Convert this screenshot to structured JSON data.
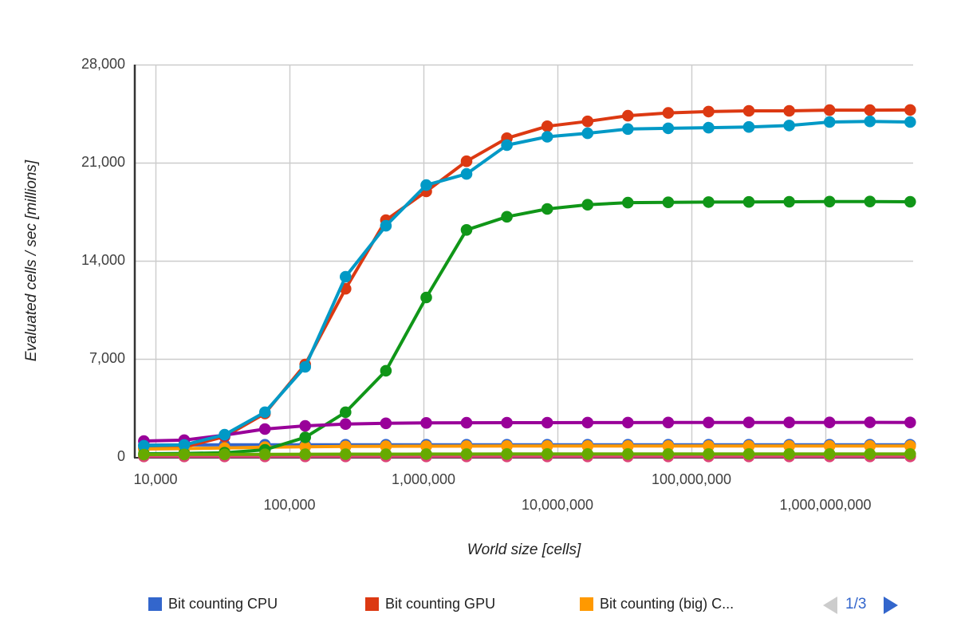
{
  "chart": {
    "y_axis": {
      "title": "Evaluated cells / sec [millions]",
      "ticks": [
        {
          "label": "0",
          "value": 0
        },
        {
          "label": "7,000",
          "value": 7000
        },
        {
          "label": "14,000",
          "value": 14000
        },
        {
          "label": "21,000",
          "value": 21000
        },
        {
          "label": "28,000",
          "value": 28000
        }
      ],
      "range": [
        0,
        28000
      ]
    },
    "x_axis": {
      "title": "World size [cells]",
      "scale": "log",
      "ticks": [
        {
          "label": "10,000",
          "value": 10000,
          "row": 1
        },
        {
          "label": "100,000",
          "value": 100000,
          "row": 2
        },
        {
          "label": "1,000,000",
          "value": 1000000,
          "row": 1
        },
        {
          "label": "10,000,000",
          "value": 10000000,
          "row": 2
        },
        {
          "label": "100,000,000",
          "value": 100000000,
          "row": 1
        },
        {
          "label": "1,000,000,000",
          "value": 1000000000,
          "row": 2
        }
      ]
    },
    "legend": {
      "items": [
        {
          "label": "Bit counting CPU",
          "color": "#3366cc"
        },
        {
          "label": "Bit counting GPU",
          "color": "#dc3912"
        },
        {
          "label": "Bit counting (big) C...",
          "color": "#ff9900"
        }
      ],
      "page_label": "1/3",
      "prev_arrow_color": "#cccccc",
      "next_arrow_color": "#3366cc",
      "page_text_color": "#3366cc"
    },
    "colors": {
      "background": "#ffffff",
      "gridline": "#cccccc",
      "axis_line": "#333333",
      "tick_text": "#404040",
      "title_text": "#222222"
    }
  },
  "chart_data": {
    "type": "line",
    "title": "",
    "xlabel": "World size [cells]",
    "ylabel": "Evaluated cells / sec [millions]",
    "x_scale": "log",
    "ylim": [
      0,
      28000
    ],
    "grid": true,
    "legend_position": "bottom",
    "legend_page": "1/3",
    "x": [
      8192,
      16384,
      32768,
      65536,
      131072,
      262144,
      524288,
      1048576,
      2097152,
      4194304,
      8388608,
      16777216,
      33554432,
      67108864,
      134217728,
      268435456,
      536870912,
      1073741824,
      2147483648,
      4294967296
    ],
    "series": [
      {
        "name": "Bit counting CPU",
        "color": "#3366cc",
        "values": [
          850,
          860,
          865,
          870,
          870,
          870,
          870,
          870,
          870,
          870,
          870,
          870,
          870,
          870,
          870,
          870,
          870,
          870,
          870,
          870
        ]
      },
      {
        "name": "Bit counting GPU",
        "color": "#dc3912",
        "values": [
          620,
          700,
          1450,
          3100,
          6600,
          12000,
          16900,
          18950,
          21100,
          22750,
          23600,
          23950,
          24350,
          24550,
          24650,
          24700,
          24700,
          24750,
          24750,
          24760
        ]
      },
      {
        "name": "Bit counting (big) C...",
        "color": "#ff9900",
        "values": [
          570,
          600,
          640,
          700,
          730,
          750,
          760,
          770,
          775,
          780,
          780,
          780,
          780,
          780,
          780,
          785,
          785,
          785,
          785,
          785
        ]
      },
      {
        "name": "",
        "color": "#109618",
        "values": [
          230,
          250,
          300,
          510,
          1400,
          3190,
          6150,
          11380,
          16200,
          17140,
          17700,
          18000,
          18150,
          18170,
          18190,
          18200,
          18210,
          18220,
          18230,
          18210
        ]
      },
      {
        "name": "",
        "color": "#990099",
        "values": [
          1140,
          1200,
          1560,
          1990,
          2220,
          2350,
          2400,
          2430,
          2440,
          2450,
          2450,
          2455,
          2455,
          2460,
          2460,
          2465,
          2465,
          2465,
          2470,
          2465
        ]
      },
      {
        "name": "",
        "color": "#0099c6",
        "values": [
          800,
          860,
          1590,
          3190,
          6430,
          12860,
          16500,
          19400,
          20200,
          22250,
          22850,
          23100,
          23400,
          23450,
          23500,
          23550,
          23650,
          23900,
          23950,
          23900
        ]
      },
      {
        "name": "",
        "color": "#dd4477",
        "values": [
          40,
          40,
          40,
          40,
          40,
          40,
          40,
          40,
          40,
          40,
          40,
          40,
          40,
          40,
          40,
          40,
          40,
          40,
          40,
          40
        ]
      },
      {
        "name": "",
        "color": "#66aa00",
        "values": [
          170,
          180,
          185,
          190,
          195,
          200,
          200,
          205,
          205,
          210,
          210,
          210,
          210,
          210,
          210,
          210,
          210,
          210,
          210,
          210
        ]
      }
    ]
  }
}
